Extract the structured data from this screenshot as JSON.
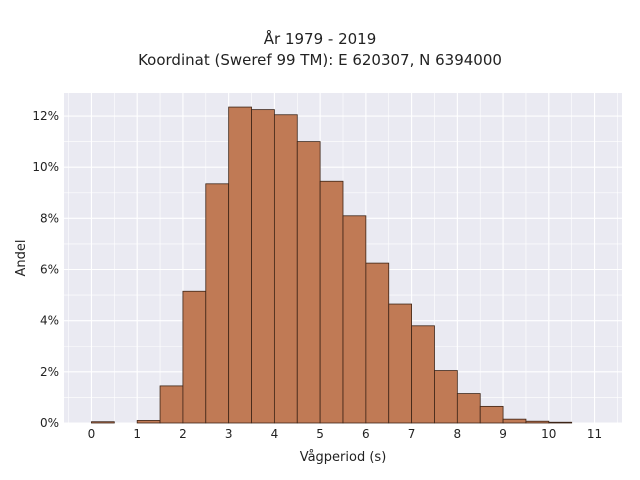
{
  "chart_data": {
    "type": "bar",
    "title": "År 1979 - 2019",
    "subtitle": "Koordinat (Sweref 99 TM): E 620307, N 6394000",
    "xlabel": "Vågperiod (s)",
    "ylabel": "Andel",
    "bin_width": 0.5,
    "bin_starts": [
      0,
      0.5,
      1,
      1.5,
      2,
      2.5,
      3,
      3.5,
      4,
      4.5,
      5,
      5.5,
      6,
      6.5,
      7,
      7.5,
      8,
      8.5,
      9,
      9.5,
      10,
      10.5
    ],
    "values": [
      0.05,
      0.0,
      0.1,
      1.45,
      5.15,
      9.35,
      12.35,
      12.25,
      12.05,
      11.0,
      9.45,
      8.1,
      6.25,
      4.65,
      3.8,
      2.05,
      1.15,
      0.65,
      0.15,
      0.07,
      0.03,
      0.0
    ],
    "xlim": [
      -0.6,
      11.6
    ],
    "ylim": [
      0,
      12.9
    ],
    "x_ticks": [
      0,
      1,
      2,
      3,
      4,
      5,
      6,
      7,
      8,
      9,
      10,
      11
    ],
    "x_tick_labels": [
      "0",
      "1",
      "2",
      "3",
      "4",
      "5",
      "6",
      "7",
      "8",
      "9",
      "10",
      "11"
    ],
    "y_ticks": [
      0,
      2,
      4,
      6,
      8,
      10,
      12
    ],
    "y_tick_labels": [
      "0%",
      "2%",
      "4%",
      "6%",
      "8%",
      "10%",
      "12%"
    ],
    "grid": true,
    "bar_color": "#c07a55",
    "bar_edge_color": "#3d2416",
    "plot_background": "#eaeaf2"
  }
}
